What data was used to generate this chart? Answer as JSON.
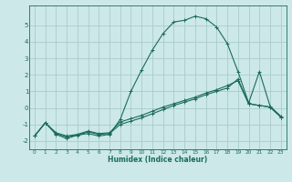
{
  "xlabel": "Humidex (Indice chaleur)",
  "bg_color": "#cce8e8",
  "grid_color": "#aacccc",
  "line_color": "#1a6b5a",
  "xlim": [
    -0.5,
    23.5
  ],
  "ylim": [
    -2.5,
    6.2
  ],
  "yticks": [
    -2,
    -1,
    0,
    1,
    2,
    3,
    4,
    5
  ],
  "xticks": [
    0,
    1,
    2,
    3,
    4,
    5,
    6,
    7,
    8,
    9,
    10,
    11,
    12,
    13,
    14,
    15,
    16,
    17,
    18,
    19,
    20,
    21,
    22,
    23
  ],
  "line1_x": [
    0,
    1,
    2,
    3,
    4,
    5,
    6,
    7,
    8,
    9,
    10,
    11,
    12,
    13,
    14,
    15,
    16,
    17,
    18,
    19,
    20,
    21,
    22,
    23
  ],
  "line1_y": [
    -1.7,
    -0.9,
    -1.6,
    -1.85,
    -1.65,
    -1.55,
    -1.7,
    -1.6,
    -0.7,
    1.0,
    2.3,
    3.5,
    4.5,
    5.2,
    5.3,
    5.55,
    5.4,
    4.9,
    3.9,
    2.2,
    0.3,
    2.2,
    0.1,
    -0.5
  ],
  "line2_x": [
    0,
    1,
    2,
    3,
    4,
    5,
    6,
    7,
    8,
    9,
    10,
    11,
    12,
    13,
    14,
    15,
    16,
    17,
    18,
    19,
    20,
    21,
    22,
    23
  ],
  "line2_y": [
    -1.7,
    -0.9,
    -1.55,
    -1.75,
    -1.65,
    -1.45,
    -1.6,
    -1.55,
    -1.0,
    -0.8,
    -0.6,
    -0.35,
    -0.1,
    0.15,
    0.35,
    0.55,
    0.8,
    1.0,
    1.2,
    1.75,
    0.25,
    0.15,
    0.05,
    -0.55
  ],
  "line3_x": [
    0,
    1,
    2,
    3,
    4,
    5,
    6,
    7,
    8,
    9,
    10,
    11,
    12,
    13,
    14,
    15,
    16,
    17,
    18,
    19,
    20,
    21,
    22,
    23
  ],
  "line3_y": [
    -1.7,
    -0.9,
    -1.5,
    -1.7,
    -1.6,
    -1.4,
    -1.55,
    -1.5,
    -0.85,
    -0.65,
    -0.45,
    -0.2,
    0.05,
    0.25,
    0.45,
    0.65,
    0.9,
    1.1,
    1.35,
    1.65,
    0.25,
    0.15,
    0.05,
    -0.55
  ]
}
